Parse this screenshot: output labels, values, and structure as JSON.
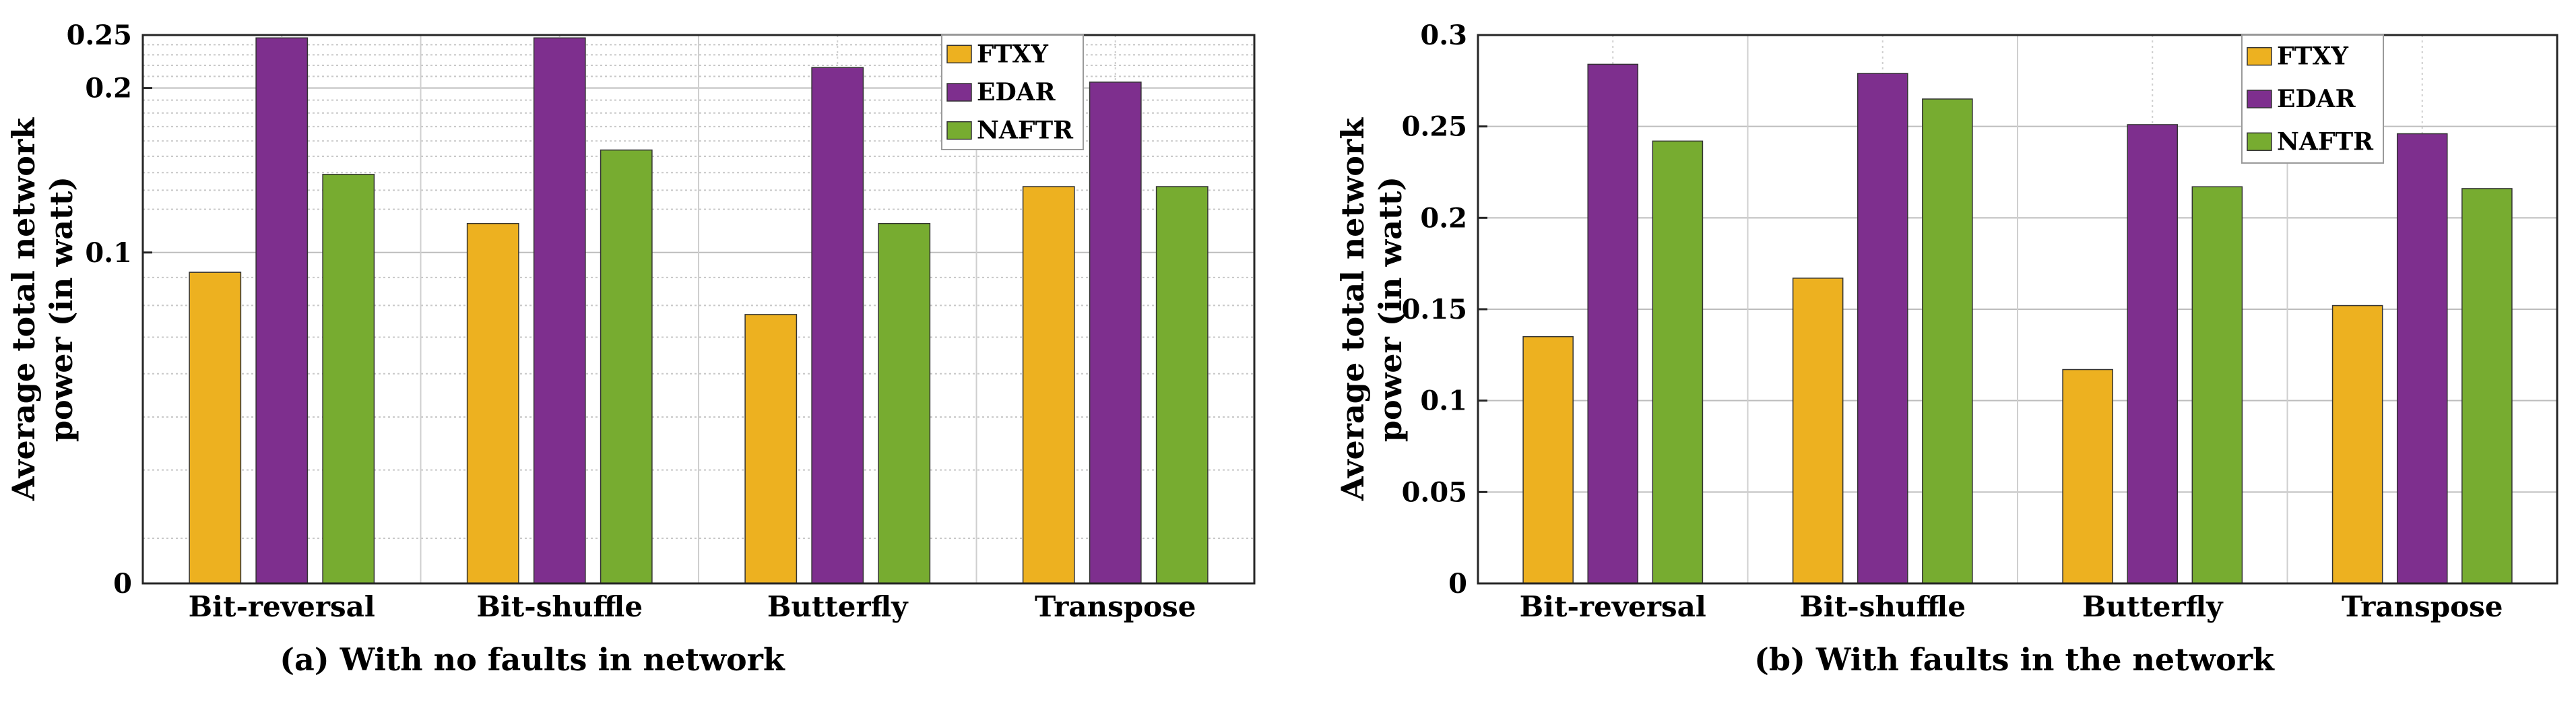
{
  "chart_data": [
    {
      "type": "bar",
      "caption": "(a) With no faults in network",
      "ylabel": "Average total network power (in watt)",
      "ylabel_lines": [
        "Average total network",
        "power (in watt)"
      ],
      "categories": [
        "Bit-reversal",
        "Bit-shuffle",
        "Butterfly",
        "Transpose"
      ],
      "y_scale": "log",
      "ylim": [
        0.0248,
        0.25
      ],
      "zero_label": "0",
      "yticks": [
        {
          "value": 0.0248,
          "label": "0"
        },
        {
          "value": 0.1,
          "label": "0.1"
        },
        {
          "value": 0.2,
          "label": "0.2"
        },
        {
          "value": 0.25,
          "label": "0.25"
        }
      ],
      "minor_grid": [
        0.03,
        0.04,
        0.05,
        0.06,
        0.07,
        0.08,
        0.09,
        0.12,
        0.13,
        0.14,
        0.15,
        0.16,
        0.17,
        0.18,
        0.19,
        0.21,
        0.22,
        0.23,
        0.24
      ],
      "series": [
        {
          "name": "FTXY",
          "color": "#EDB120",
          "values": [
            0.092,
            0.113,
            0.077,
            0.132
          ]
        },
        {
          "name": "EDAR",
          "color": "#7E2F8E",
          "values": [
            0.247,
            0.247,
            0.218,
            0.205
          ]
        },
        {
          "name": "NAFTR",
          "color": "#77AC30",
          "values": [
            0.139,
            0.154,
            0.113,
            0.132
          ]
        }
      ],
      "legend": "top-right",
      "grid": true
    },
    {
      "type": "bar",
      "caption": "(b) With faults in the network",
      "ylabel": "Average total network power (in watt)",
      "ylabel_lines": [
        "Average total network",
        "power (in watt)"
      ],
      "categories": [
        "Bit-reversal",
        "Bit-shuffle",
        "Butterfly",
        "Transpose"
      ],
      "y_scale": "linear",
      "ylim": [
        0,
        0.3
      ],
      "yticks": [
        {
          "value": 0,
          "label": "0"
        },
        {
          "value": 0.05,
          "label": "0.05"
        },
        {
          "value": 0.1,
          "label": "0.1"
        },
        {
          "value": 0.15,
          "label": "0.15"
        },
        {
          "value": 0.2,
          "label": "0.2"
        },
        {
          "value": 0.25,
          "label": "0.25"
        },
        {
          "value": 0.3,
          "label": "0.3"
        }
      ],
      "series": [
        {
          "name": "FTXY",
          "color": "#EDB120",
          "values": [
            0.135,
            0.167,
            0.117,
            0.152
          ]
        },
        {
          "name": "EDAR",
          "color": "#7E2F8E",
          "values": [
            0.284,
            0.279,
            0.251,
            0.246
          ]
        },
        {
          "name": "NAFTR",
          "color": "#77AC30",
          "values": [
            0.242,
            0.265,
            0.217,
            0.216
          ]
        }
      ],
      "legend": "top-right",
      "grid": true
    }
  ]
}
